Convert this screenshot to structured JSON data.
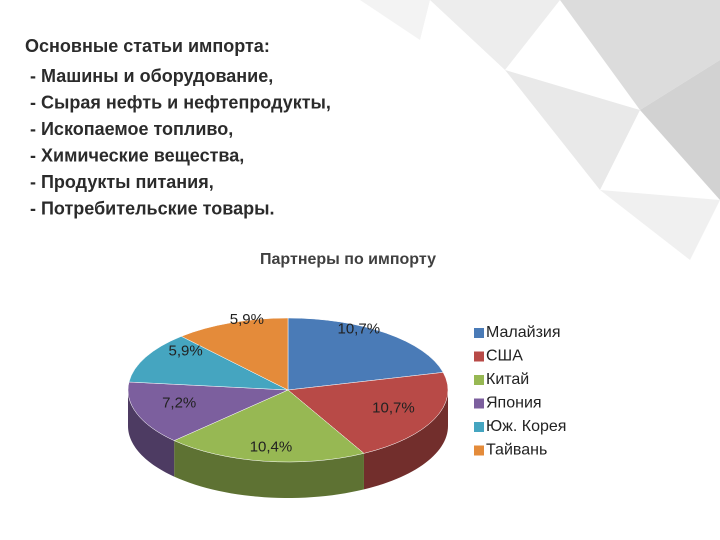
{
  "slide": {
    "heading": "Основные статьи импорта:",
    "items": [
      "- Машины и оборудование,",
      "- Сырая нефть и нефтепродукты,",
      "- Ископаемое топливо,",
      "- Химические вещества,",
      "- Продукты питания,",
      "- Потребительские товары."
    ]
  },
  "chart_data": {
    "type": "pie",
    "title": "Партнеры по импорту",
    "categories": [
      "Малайзия",
      "США",
      "Китай",
      "Япония",
      "Юж. Корея",
      "Тайвань"
    ],
    "values": [
      10.7,
      10.7,
      10.4,
      7.2,
      5.9,
      5.9
    ],
    "value_labels": [
      "10,7%",
      "10,7%",
      "10,4%",
      "7,2%",
      "5,9%",
      "5,9%"
    ],
    "colors": [
      "#4a7bb7",
      "#b84a47",
      "#97b853",
      "#7c5f9e",
      "#45a5c0",
      "#e48b3a"
    ],
    "legend": "right"
  }
}
